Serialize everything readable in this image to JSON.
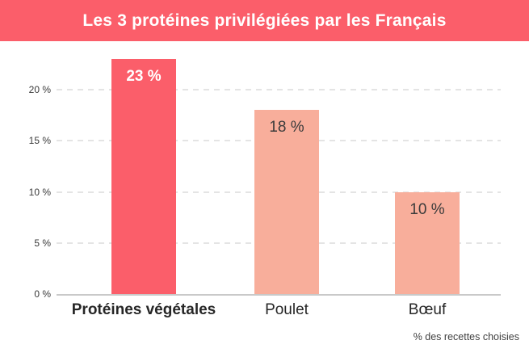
{
  "banner": {
    "title": "Les 3 protéines privilégiées par les Français",
    "bg_color": "#fb5e6a",
    "text_color": "#ffffff"
  },
  "footer_note": "% des recettes choisies",
  "chart_data": {
    "type": "bar",
    "title": "Les 3 protéines privilégiées par les Français",
    "categories": [
      "Protéines végétales",
      "Poulet",
      "Bœuf"
    ],
    "values": [
      23,
      18,
      10
    ],
    "value_labels": [
      "23 %",
      "18 %",
      "10 %"
    ],
    "xlabel": "",
    "ylabel": "",
    "ylim": [
      0,
      25
    ],
    "yticks": [
      0,
      5,
      10,
      15,
      20
    ],
    "ytick_labels": [
      "0 %",
      "5 %",
      "10 %",
      "15 %",
      "20 %"
    ],
    "grid": "horizontal-dashed",
    "legend_position": "none",
    "annotation": "% des recettes choisies",
    "bar_colors": [
      "#fb5e6a",
      "#f8ae9b",
      "#f8ae9b"
    ],
    "value_label_colors": [
      "#ffffff",
      "#3b3b3b",
      "#3b3b3b"
    ],
    "value_label_bold": [
      true,
      false,
      false
    ],
    "category_bold": [
      true,
      false,
      false
    ],
    "highlight_index": 0
  },
  "colors": {
    "accent": "#fb5e6a",
    "bar_light": "#f8ae9b",
    "gridline": "#e4e4e4",
    "axis_line": "#c9c9c9",
    "text_dark": "#262626",
    "tick_text": "#3a3a3a",
    "note_text": "#3f3f3f",
    "background": "#ffffff"
  }
}
